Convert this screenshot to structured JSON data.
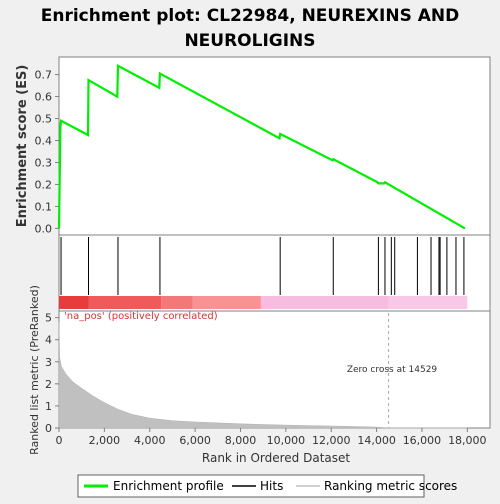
{
  "title_line1": "Enrichment plot: CL22984, NEUREXINS AND",
  "title_line2": "NEUROLIGINS",
  "colors": {
    "background": "#f0f0f0",
    "plot_bg": "#ffffff",
    "es_line": "#00ee00",
    "hit_line": "#000000",
    "metric_fill": "#c0c0c0",
    "pos_label": "#dd3333",
    "zero_cross_line": "#aaaaaa"
  },
  "chart_data": [
    {
      "type": "line",
      "name": "enrichment-profile",
      "ylabel": "Enrichment score (ES)",
      "xlim": [
        0,
        19000
      ],
      "ylim": [
        -0.03,
        0.78
      ],
      "yticks": [
        0.0,
        0.1,
        0.2,
        0.3,
        0.4,
        0.5,
        0.6,
        0.7
      ],
      "ytick_labels": [
        "0.0",
        "0.1",
        "0.2",
        "0.3",
        "0.4",
        "0.5",
        "0.6",
        "0.7"
      ],
      "series": [
        {
          "x": [
            0,
            60,
            90,
            1280,
            1300,
            2570,
            2600,
            4420,
            4450,
            9720,
            9750,
            12060,
            12090,
            14040,
            14080,
            14330,
            14370,
            17900
          ],
          "y": [
            0.0,
            0.46,
            0.49,
            0.425,
            0.675,
            0.6,
            0.74,
            0.64,
            0.705,
            0.41,
            0.43,
            0.31,
            0.315,
            0.21,
            0.205,
            0.205,
            0.21,
            0.0
          ]
        }
      ]
    },
    {
      "type": "hits",
      "name": "hits",
      "xlim": [
        0,
        19000
      ],
      "hit_positions": [
        90,
        1300,
        2600,
        4450,
        9750,
        12090,
        14080,
        14370,
        14650,
        14800,
        15800,
        16400,
        16750,
        16800,
        17100,
        17500,
        17850
      ],
      "gradient": [
        {
          "start": 0,
          "end": 1300,
          "color": "#e83c3c"
        },
        {
          "start": 1300,
          "end": 4500,
          "color": "#f05a5a"
        },
        {
          "start": 4500,
          "end": 5900,
          "color": "#f57878"
        },
        {
          "start": 5900,
          "end": 8900,
          "color": "#f99292"
        },
        {
          "start": 8900,
          "end": 14529,
          "color": "#f7bde0"
        },
        {
          "start": 14529,
          "end": 18000,
          "color": "#f9c8e6"
        }
      ]
    },
    {
      "type": "area",
      "name": "ranked-list-metric",
      "xlabel": "Rank in Ordered Dataset",
      "ylabel": "Ranked list metric (PreRanked)",
      "xlim": [
        0,
        19000
      ],
      "ylim": [
        0,
        5.3
      ],
      "xticks": [
        0,
        2000,
        4000,
        6000,
        8000,
        10000,
        12000,
        14000,
        16000,
        18000
      ],
      "xtick_labels": [
        "0",
        "2,000",
        "4,000",
        "6,000",
        "8,000",
        "10,000",
        "12,000",
        "14,000",
        "16,000",
        "18,000"
      ],
      "yticks": [
        0,
        1,
        2,
        3,
        4,
        5
      ],
      "ytick_labels": [
        "0",
        "1",
        "2",
        "3",
        "4",
        "5"
      ],
      "x": [
        0,
        30,
        100,
        300,
        600,
        1000,
        1500,
        2000,
        2600,
        3200,
        4000,
        5000,
        6000,
        7000,
        8000,
        9000,
        10000,
        11000,
        12000,
        13000,
        14000,
        14529,
        18000
      ],
      "y": [
        4.8,
        3.2,
        2.8,
        2.45,
        2.1,
        1.8,
        1.45,
        1.15,
        0.85,
        0.62,
        0.45,
        0.33,
        0.27,
        0.23,
        0.19,
        0.16,
        0.13,
        0.11,
        0.09,
        0.07,
        0.04,
        0.0,
        0.0
      ],
      "zero_cross": 14529,
      "annotations": {
        "pos_label": "'na_pos' (positively correlated)",
        "zero_cross_label": "Zero cross at 14529"
      }
    }
  ],
  "legend": [
    {
      "label": "Enrichment profile",
      "color": "#00ee00"
    },
    {
      "label": "Hits",
      "color": "#000000"
    },
    {
      "label": "Ranking metric scores",
      "color": "#c0c0c0"
    }
  ]
}
